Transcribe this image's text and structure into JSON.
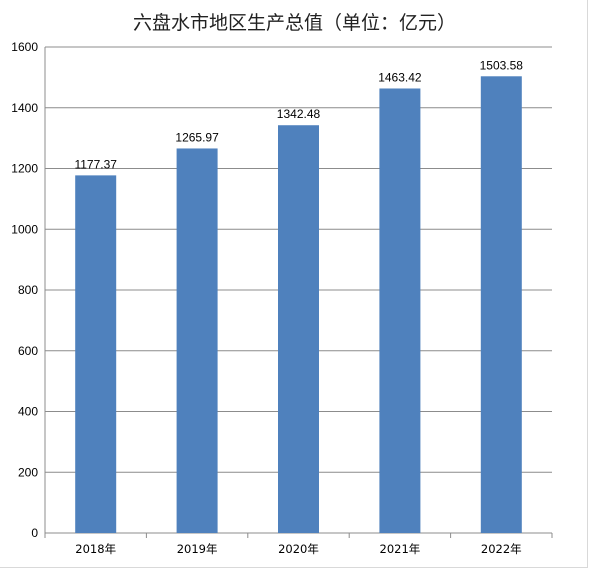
{
  "chart_data": {
    "type": "bar",
    "title": "六盘水市地区生产总值（单位：亿元）",
    "categories": [
      "2018年",
      "2019年",
      "2020年",
      "2021年",
      "2022年"
    ],
    "values": [
      1177.37,
      1265.97,
      1342.48,
      1463.42,
      1503.58
    ],
    "data_labels": [
      "1177.37",
      "1265.97",
      "1342.48",
      "1463.42",
      "1503.58"
    ],
    "ylim": [
      0,
      1600
    ],
    "yticks": [
      0,
      200,
      400,
      600,
      800,
      1000,
      1200,
      1400,
      1600
    ],
    "grid": true,
    "legend": "none",
    "bar_color": "#4f81bd"
  }
}
